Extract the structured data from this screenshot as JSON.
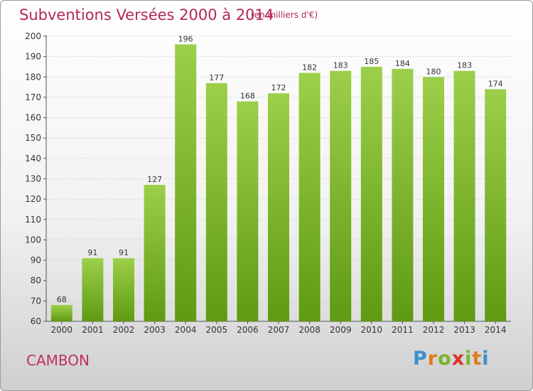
{
  "header": {
    "title": "Subventions Versées 2000 à 2014",
    "unit": "(en milliers d'€)"
  },
  "footer": {
    "commune": "CAMBON",
    "brand": "Proxiti"
  },
  "colors": {
    "bar_top": "#9ccf4a",
    "bar_bottom": "#5f9a12",
    "title": "#b4265a"
  },
  "chart_data": {
    "type": "bar",
    "title": "Subventions Versées 2000 à 2014",
    "subtitle": "(en milliers d'€)",
    "categories": [
      "2000",
      "2001",
      "2002",
      "2003",
      "2004",
      "2005",
      "2006",
      "2007",
      "2008",
      "2009",
      "2010",
      "2011",
      "2012",
      "2013",
      "2014"
    ],
    "values": [
      68,
      91,
      91,
      127,
      196,
      177,
      168,
      172,
      182,
      183,
      185,
      184,
      180,
      183,
      174
    ],
    "ylim": [
      60,
      200
    ],
    "yticks": [
      60,
      70,
      80,
      90,
      100,
      110,
      120,
      130,
      140,
      150,
      160,
      170,
      180,
      190,
      200
    ],
    "grid": true,
    "legend": "none"
  }
}
